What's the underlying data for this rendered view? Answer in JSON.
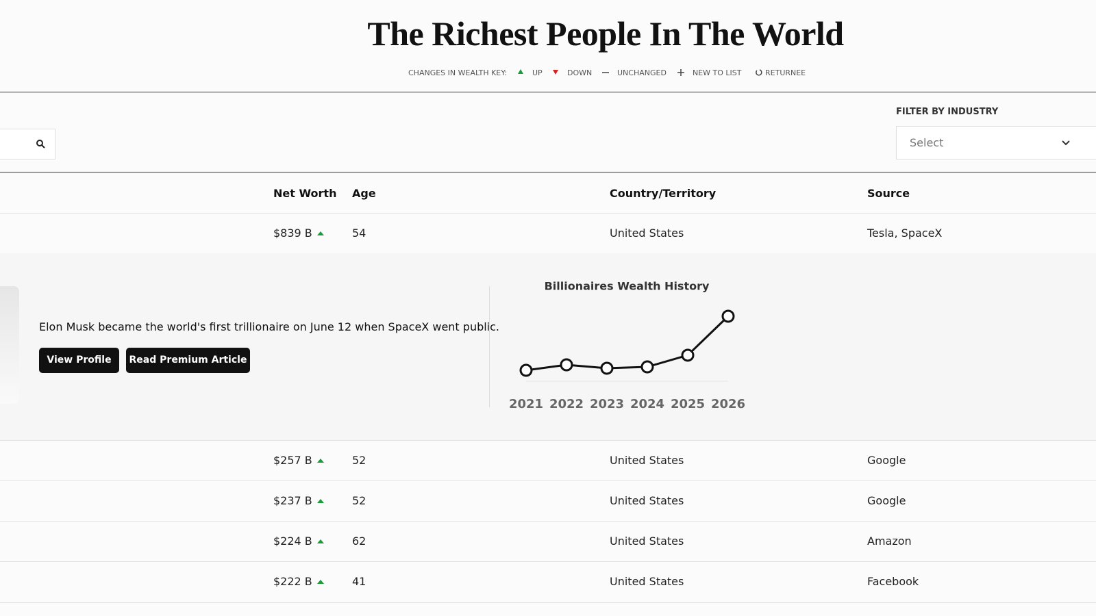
{
  "header": {
    "title": "The Richest People In The World",
    "key": {
      "label": "CHANGES IN WEALTH KEY:",
      "items": [
        "UP",
        "DOWN",
        "UNCHANGED",
        "NEW TO LIST",
        "RETURNEE"
      ]
    }
  },
  "filter": {
    "label": "FILTER BY INDUSTRY",
    "placeholder": "Select"
  },
  "table": {
    "columns": [
      "Net Worth",
      "Age",
      "Country/Territory",
      "Source"
    ],
    "rows": [
      [
        "$839 B",
        "54",
        "United States",
        "Tesla, SpaceX"
      ],
      [
        "$257 B",
        "52",
        "United States",
        "Google"
      ],
      [
        "$237 B",
        "52",
        "United States",
        "Google"
      ],
      [
        "$224 B",
        "62",
        "United States",
        "Amazon"
      ],
      [
        "$222 B",
        "41",
        "United States",
        "Facebook"
      ]
    ]
  },
  "profile": {
    "text": "Elon Musk became the world's first trillionaire on June 12 when SpaceX went public.",
    "buttons": [
      "View Profile",
      "Read Premium Article"
    ]
  },
  "chart_data": {
    "type": "line",
    "title": "Billionaires Wealth History",
    "categories": [
      "2021",
      "2022",
      "2023",
      "2024",
      "2025",
      "2026"
    ],
    "values": [
      141,
      212,
      168,
      185,
      336,
      839
    ],
    "color": "#111111",
    "ylim": [
      0,
      839
    ]
  }
}
